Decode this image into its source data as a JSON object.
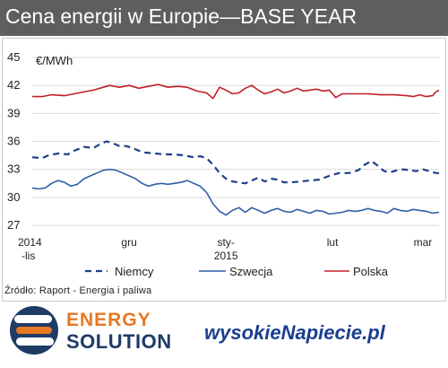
{
  "title": "Cena energii w Europie—BASE YEAR",
  "source": "Źródło: Raport - Energia i paliwa",
  "logos": {
    "energy_solution_line1": "ENERGY",
    "energy_solution_line2": "SOLUTION",
    "wysokie_napiecie": "wysokieNapiecie.pl"
  },
  "colors": {
    "title_bg": "#5e5e5e",
    "niemcy": "#1f3f8a",
    "szwecja": "#2e5fa8",
    "polska": "#c0202a",
    "grid": "#d9d9d9"
  },
  "chart_data": {
    "type": "line",
    "ylabel": "€/MWh",
    "ylim": [
      27,
      45
    ],
    "yticks": [
      27,
      30,
      33,
      36,
      39,
      42,
      45
    ],
    "grid": true,
    "legend_position": "bottom",
    "x_ticks": [
      {
        "t": 0,
        "line1": "2014",
        "line2": "-lis"
      },
      {
        "t": 30,
        "line1": "gru",
        "line2": ""
      },
      {
        "t": 60,
        "line1": "sty-",
        "line2": "2015"
      },
      {
        "t": 93,
        "line1": "lut",
        "line2": ""
      },
      {
        "t": 121,
        "line1": "mar",
        "line2": ""
      }
    ],
    "series": [
      {
        "name": "Niemcy",
        "style": "dashed",
        "values": [
          [
            0,
            34.3
          ],
          [
            3,
            34.2
          ],
          [
            5,
            34.5
          ],
          [
            8,
            34.7
          ],
          [
            11,
            34.6
          ],
          [
            13,
            35.0
          ],
          [
            16,
            35.4
          ],
          [
            19,
            35.3
          ],
          [
            21,
            35.7
          ],
          [
            23,
            36.0
          ],
          [
            25,
            35.8
          ],
          [
            27,
            35.5
          ],
          [
            29,
            35.5
          ],
          [
            31,
            35.3
          ],
          [
            33,
            35.0
          ],
          [
            35,
            34.8
          ],
          [
            38,
            34.7
          ],
          [
            41,
            34.6
          ],
          [
            44,
            34.6
          ],
          [
            47,
            34.5
          ],
          [
            50,
            34.3
          ],
          [
            52,
            34.4
          ],
          [
            54,
            34.2
          ],
          [
            56,
            33.5
          ],
          [
            58,
            32.6
          ],
          [
            60,
            32.0
          ],
          [
            62,
            31.7
          ],
          [
            64,
            31.6
          ],
          [
            66,
            31.5
          ],
          [
            68,
            31.8
          ],
          [
            70,
            32.1
          ],
          [
            72,
            31.7
          ],
          [
            74,
            32.0
          ],
          [
            76,
            31.9
          ],
          [
            78,
            31.6
          ],
          [
            80,
            31.6
          ],
          [
            83,
            31.7
          ],
          [
            86,
            31.8
          ],
          [
            89,
            31.9
          ],
          [
            92,
            32.3
          ],
          [
            95,
            32.6
          ],
          [
            98,
            32.6
          ],
          [
            101,
            32.9
          ],
          [
            103,
            33.5
          ],
          [
            105,
            33.9
          ],
          [
            107,
            33.4
          ],
          [
            109,
            32.8
          ],
          [
            111,
            32.7
          ],
          [
            113,
            32.9
          ],
          [
            115,
            33.0
          ],
          [
            117,
            32.9
          ],
          [
            119,
            32.8
          ],
          [
            121,
            33.0
          ],
          [
            123,
            32.8
          ],
          [
            125,
            32.6
          ],
          [
            126,
            32.6
          ]
        ]
      },
      {
        "name": "Szwecja",
        "style": "solid",
        "values": [
          [
            0,
            31.0
          ],
          [
            2,
            30.9
          ],
          [
            4,
            31.0
          ],
          [
            6,
            31.5
          ],
          [
            8,
            31.8
          ],
          [
            10,
            31.6
          ],
          [
            12,
            31.2
          ],
          [
            14,
            31.4
          ],
          [
            16,
            32.0
          ],
          [
            18,
            32.3
          ],
          [
            20,
            32.6
          ],
          [
            22,
            32.9
          ],
          [
            24,
            33.0
          ],
          [
            26,
            32.9
          ],
          [
            28,
            32.6
          ],
          [
            30,
            32.3
          ],
          [
            32,
            32.0
          ],
          [
            34,
            31.5
          ],
          [
            36,
            31.2
          ],
          [
            38,
            31.4
          ],
          [
            40,
            31.5
          ],
          [
            42,
            31.4
          ],
          [
            44,
            31.5
          ],
          [
            46,
            31.6
          ],
          [
            48,
            31.8
          ],
          [
            50,
            31.5
          ],
          [
            52,
            31.2
          ],
          [
            54,
            30.5
          ],
          [
            56,
            29.3
          ],
          [
            58,
            28.5
          ],
          [
            60,
            28.1
          ],
          [
            62,
            28.6
          ],
          [
            64,
            28.9
          ],
          [
            66,
            28.4
          ],
          [
            68,
            28.9
          ],
          [
            70,
            28.6
          ],
          [
            72,
            28.3
          ],
          [
            74,
            28.6
          ],
          [
            76,
            28.8
          ],
          [
            78,
            28.5
          ],
          [
            80,
            28.4
          ],
          [
            82,
            28.7
          ],
          [
            84,
            28.5
          ],
          [
            86,
            28.3
          ],
          [
            88,
            28.6
          ],
          [
            90,
            28.5
          ],
          [
            92,
            28.2
          ],
          [
            94,
            28.3
          ],
          [
            96,
            28.4
          ],
          [
            98,
            28.6
          ],
          [
            100,
            28.5
          ],
          [
            102,
            28.6
          ],
          [
            104,
            28.8
          ],
          [
            106,
            28.6
          ],
          [
            108,
            28.5
          ],
          [
            110,
            28.3
          ],
          [
            112,
            28.8
          ],
          [
            114,
            28.6
          ],
          [
            116,
            28.5
          ],
          [
            118,
            28.7
          ],
          [
            120,
            28.6
          ],
          [
            122,
            28.5
          ],
          [
            124,
            28.3
          ],
          [
            126,
            28.4
          ]
        ]
      },
      {
        "name": "Polska",
        "style": "solid",
        "values": [
          [
            0,
            40.8
          ],
          [
            3,
            40.8
          ],
          [
            6,
            41.0
          ],
          [
            10,
            40.9
          ],
          [
            13,
            41.1
          ],
          [
            16,
            41.3
          ],
          [
            19,
            41.5
          ],
          [
            22,
            41.8
          ],
          [
            24,
            42.0
          ],
          [
            27,
            41.8
          ],
          [
            30,
            42.0
          ],
          [
            33,
            41.7
          ],
          [
            36,
            41.9
          ],
          [
            39,
            42.1
          ],
          [
            42,
            41.8
          ],
          [
            45,
            41.9
          ],
          [
            48,
            41.8
          ],
          [
            51,
            41.4
          ],
          [
            54,
            41.2
          ],
          [
            56,
            40.6
          ],
          [
            58,
            41.8
          ],
          [
            60,
            41.5
          ],
          [
            62,
            41.1
          ],
          [
            64,
            41.2
          ],
          [
            66,
            41.7
          ],
          [
            68,
            42.0
          ],
          [
            70,
            41.5
          ],
          [
            72,
            41.1
          ],
          [
            74,
            41.3
          ],
          [
            76,
            41.6
          ],
          [
            78,
            41.2
          ],
          [
            80,
            41.4
          ],
          [
            82,
            41.7
          ],
          [
            84,
            41.4
          ],
          [
            86,
            41.5
          ],
          [
            88,
            41.6
          ],
          [
            90,
            41.4
          ],
          [
            92,
            41.5
          ],
          [
            94,
            40.7
          ],
          [
            96,
            41.1
          ],
          [
            100,
            41.1
          ],
          [
            104,
            41.1
          ],
          [
            108,
            41.0
          ],
          [
            112,
            41.0
          ],
          [
            116,
            40.9
          ],
          [
            118,
            40.8
          ],
          [
            120,
            41.0
          ],
          [
            122,
            40.8
          ],
          [
            124,
            40.9
          ],
          [
            125,
            41.3
          ],
          [
            126,
            41.5
          ]
        ]
      }
    ]
  }
}
